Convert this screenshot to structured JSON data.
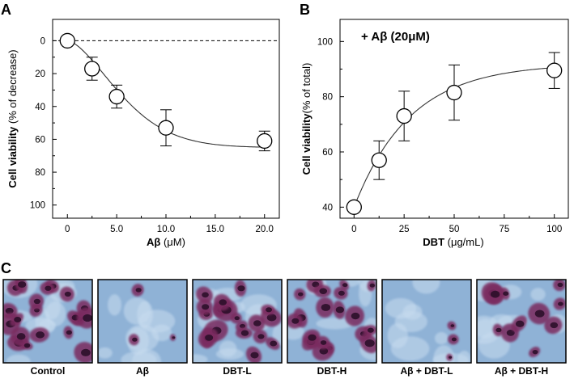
{
  "panel_labels": {
    "a": "A",
    "b": "B",
    "c": "C"
  },
  "colors": {
    "axis": "#000000",
    "marker_fill": "#ffffff",
    "curve": "#333333"
  },
  "chart_data": [
    {
      "type": "scatter",
      "panel": "A",
      "title": "",
      "xlabel_bold": "Aβ",
      "xlabel_unit": " (μM)",
      "ylabel_bold": "Cell viability",
      "ylabel_unit": " (% of decrease)",
      "xlim": [
        -1.5,
        21.5
      ],
      "ylim": [
        -13,
        108
      ],
      "y_inverted": true,
      "xticks": [
        0,
        5,
        10,
        15,
        20
      ],
      "xtick_labels": [
        "0",
        "5.0",
        "10.0",
        "15.0",
        "20.0"
      ],
      "yticks": [
        0,
        20,
        40,
        60,
        80,
        100
      ],
      "ytick_labels": [
        "0",
        "20",
        "40",
        "60",
        "80",
        "100"
      ],
      "reference_line": {
        "y": 0,
        "style": "dashed"
      },
      "fit_curve": "sigmoid",
      "series": [
        {
          "name": "Aβ",
          "x": [
            0,
            2.5,
            5,
            10,
            20
          ],
          "y": [
            0,
            17,
            34,
            53,
            61
          ],
          "err": [
            0,
            7,
            7,
            11,
            6
          ]
        }
      ]
    },
    {
      "type": "scatter",
      "panel": "B",
      "title": "",
      "annotation": "+ Aβ  (20μM)",
      "xlabel_bold": "DBT",
      "xlabel_unit": " (μg/mL)",
      "ylabel_bold": "Cell viability",
      "ylabel_unit": "(% of total)",
      "xlim": [
        -7,
        107
      ],
      "ylim": [
        36,
        108
      ],
      "y_inverted": false,
      "xticks": [
        0,
        25,
        50,
        75,
        100
      ],
      "xtick_labels": [
        "0",
        "25",
        "50",
        "75",
        "100"
      ],
      "yticks": [
        40,
        60,
        80,
        100
      ],
      "ytick_labels": [
        "40",
        "60",
        "80",
        "100"
      ],
      "fit_curve": "saturation",
      "series": [
        {
          "name": "DBT + Aβ",
          "x": [
            0,
            12.5,
            25,
            50,
            100
          ],
          "y": [
            40,
            57,
            73,
            81.5,
            89.5
          ],
          "err": [
            0,
            7,
            9,
            10,
            6.5
          ]
        }
      ]
    }
  ],
  "micrographs": [
    {
      "caption": "Control",
      "kind": "dense"
    },
    {
      "caption": "Aβ",
      "kind": "sparse"
    },
    {
      "caption": "DBT-L",
      "kind": "dense"
    },
    {
      "caption": "DBT-H",
      "kind": "dense"
    },
    {
      "caption": "Aβ + DBT-L",
      "kind": "sparse"
    },
    {
      "caption": "Aβ + DBT-H",
      "kind": "medium"
    }
  ]
}
